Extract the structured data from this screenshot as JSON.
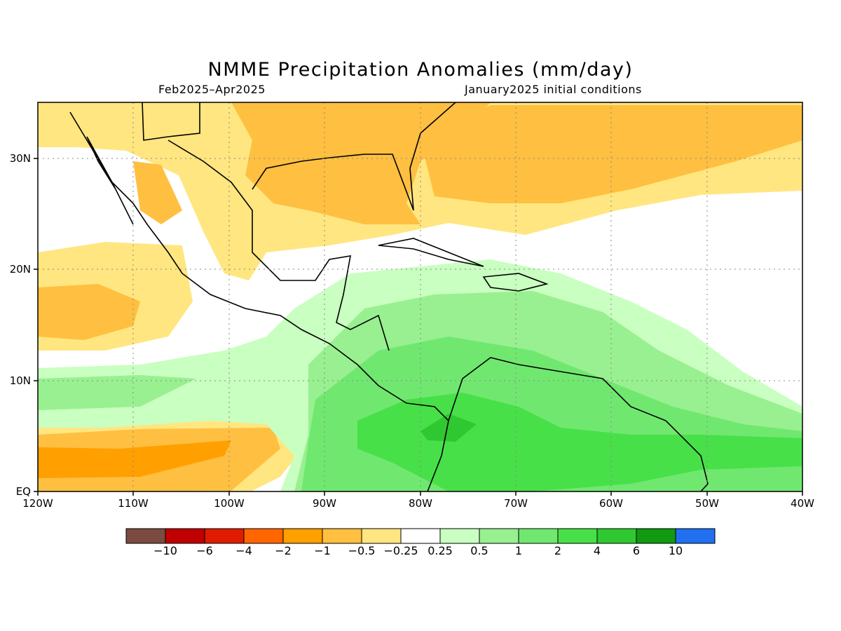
{
  "title": "NMME Precipitation Anomalies (mm/day)",
  "subtitle_left": "Feb2025–Apr2025",
  "subtitle_right": "January2025 initial conditions",
  "axes": {
    "lon_ticks": [
      "120W",
      "110W",
      "100W",
      "90W",
      "80W",
      "70W",
      "60W",
      "50W",
      "40W"
    ],
    "lat_ticks": [
      "EQ",
      "10N",
      "20N",
      "30N"
    ],
    "lon_range": [
      -120,
      -40
    ],
    "lat_range": [
      0,
      35
    ],
    "grid": "dotted"
  },
  "colorbar": {
    "colors": [
      "#7b4b3f",
      "#c00000",
      "#e01c00",
      "#ff6600",
      "#ff9f00",
      "#ffbf40",
      "#ffe680",
      "#ffffff",
      "#c9ffc0",
      "#99f090",
      "#70e870",
      "#48e048",
      "#30c830",
      "#109a10",
      "#2070f0"
    ],
    "labels": [
      "−10",
      "−6",
      "−4",
      "−2",
      "−1",
      "−0.5",
      "−0.25",
      "0.25",
      "0.5",
      "1",
      "2",
      "4",
      "6",
      "10"
    ]
  },
  "field_colors": {
    "dry_light": "#ffe680",
    "dry_medium": "#ffbf40",
    "dry_strong": "#ff9f00",
    "wet_light": "#c9ffc0",
    "wet_medium": "#99f090",
    "wet_strong": "#70e870",
    "wet_heavy": "#48e048",
    "wet_max": "#30c830"
  }
}
